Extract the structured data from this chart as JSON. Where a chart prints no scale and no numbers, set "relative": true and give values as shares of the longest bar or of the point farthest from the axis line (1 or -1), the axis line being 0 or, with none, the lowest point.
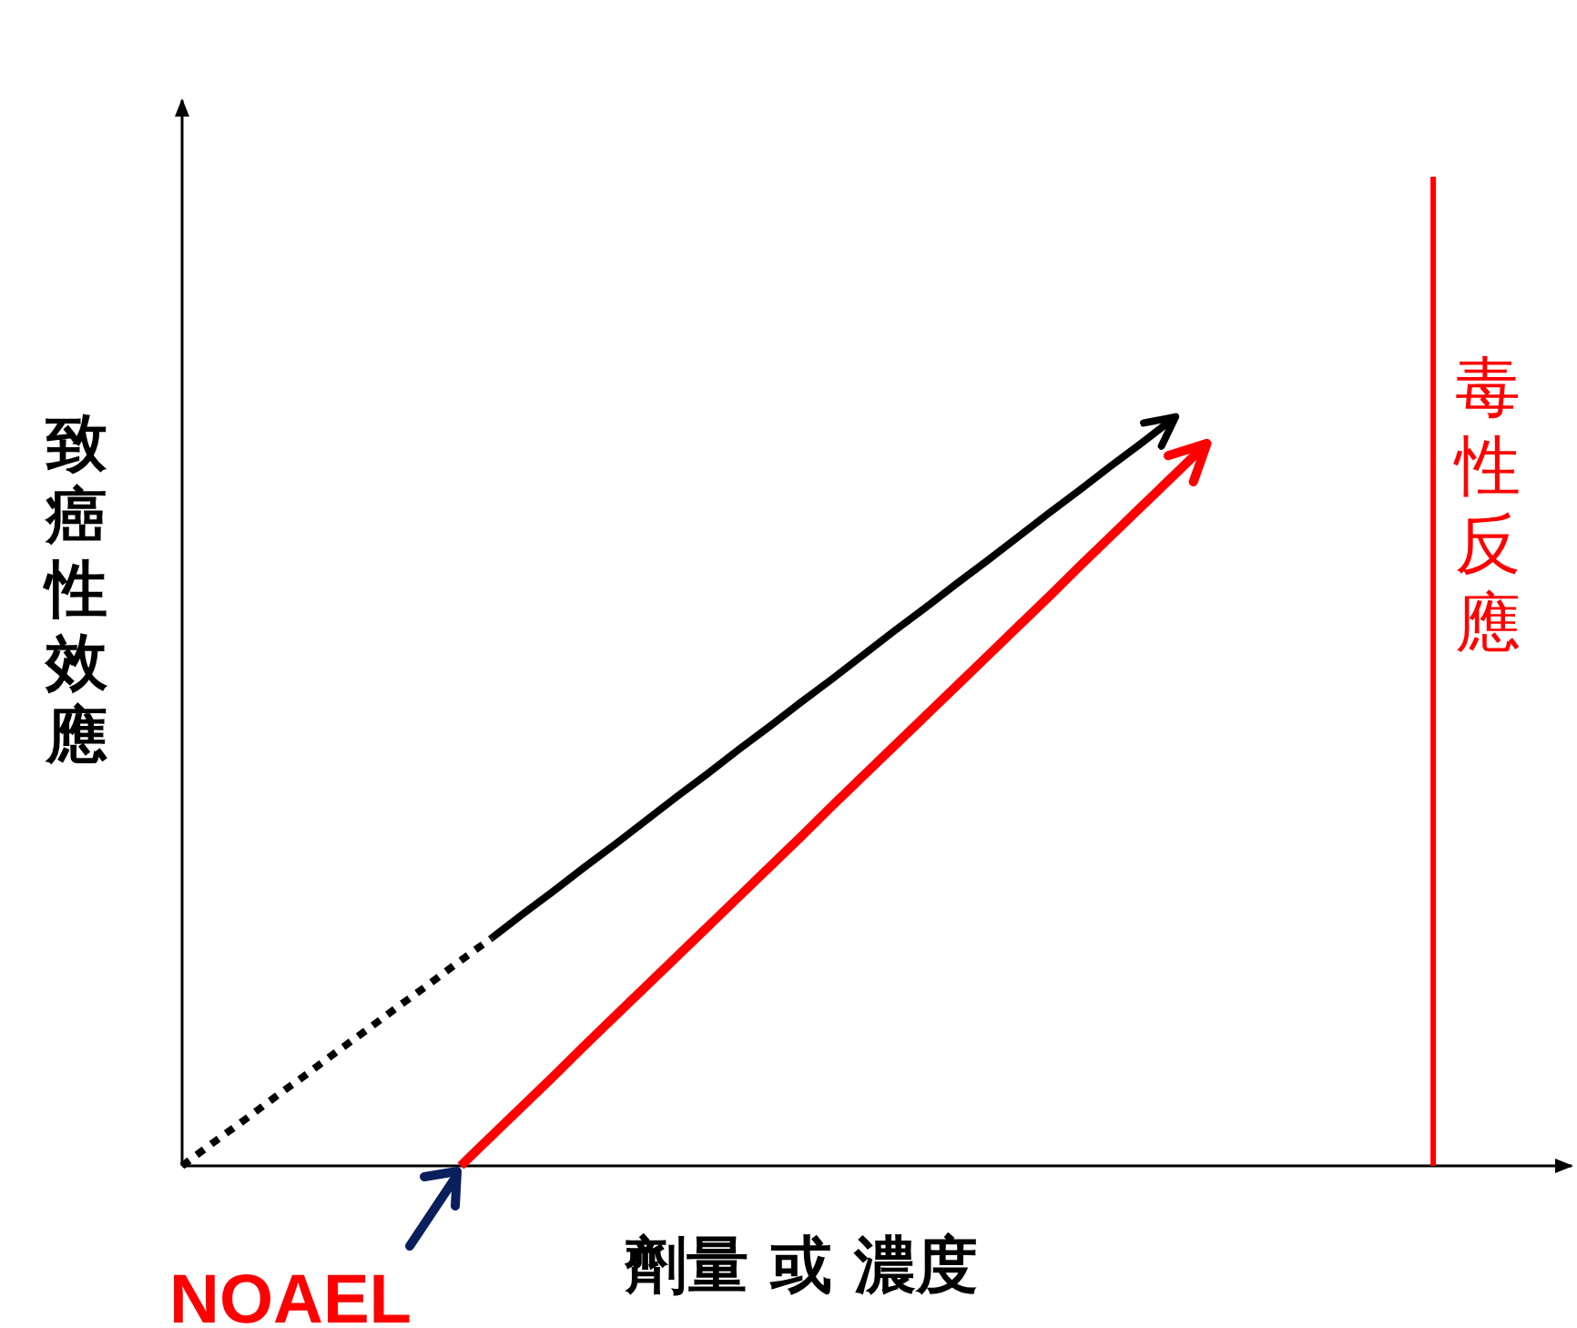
{
  "chart_data": {
    "type": "line",
    "relative": true,
    "xlabel": "劑量 或 濃度",
    "ylabel": "致癌性效應",
    "marker": "none",
    "categories": [
      null,
      null,
      null,
      null,
      null,
      null,
      null,
      null,
      null,
      null,
      null,
      null,
      null,
      null,
      null,
      null,
      null,
      null,
      null,
      null,
      null,
      null,
      null,
      null,
      null,
      null,
      null,
      null,
      null,
      null,
      null,
      null,
      null,
      null,
      null,
      null,
      null,
      null,
      null,
      null,
      null,
      null,
      null,
      null,
      null
    ],
    "series": [
      {
        "color": "#000000",
        "line_style": "dotted",
        "values": [
          0,
          0.031,
          0.061,
          0.092,
          0.122,
          0.153,
          0.183,
          0.214,
          0.244,
          0.275,
          0.305,
          null,
          null,
          null,
          null,
          null,
          null,
          null,
          null,
          null,
          null,
          null,
          null,
          null,
          null,
          null,
          null,
          null,
          null,
          null,
          null,
          null,
          null,
          null,
          null,
          null,
          null,
          null,
          null,
          null,
          null,
          null,
          null,
          null,
          null
        ]
      },
      {
        "color": "#000000",
        "line_style": "solid",
        "values": [
          null,
          null,
          null,
          null,
          null,
          null,
          null,
          null,
          null,
          null,
          0.305,
          0.337,
          0.368,
          0.4,
          0.431,
          0.463,
          0.495,
          0.526,
          0.558,
          0.589,
          0.621,
          0.652,
          0.684,
          0.716,
          0.747,
          0.779,
          0.81,
          0.842,
          0.874,
          0.905,
          0.937,
          0.968,
          1,
          null,
          null,
          null,
          null,
          null,
          null,
          null,
          null,
          null,
          null,
          null,
          null
        ]
      },
      {
        "color": "#ff0000",
        "line_style": "solid",
        "values": [
          null,
          null,
          null,
          null,
          null,
          null,
          null,
          null,
          null,
          0,
          0.04,
          0.08,
          0.12,
          0.161,
          0.201,
          0.241,
          0.281,
          0.321,
          0.361,
          0.401,
          0.441,
          0.482,
          0.522,
          0.562,
          0.602,
          0.642,
          0.682,
          0.722,
          0.762,
          0.803,
          0.843,
          0.883,
          0.923,
          0.963,
          null,
          null,
          null,
          null,
          null,
          null,
          null,
          null,
          null,
          null,
          null
        ]
      }
    ],
    "ref_lines": [
      {
        "axis": "x",
        "label": "毒性反應",
        "color": "#ff0000",
        "line_style": "solid"
      }
    ],
    "annotations": [
      "NOAEL"
    ]
  }
}
